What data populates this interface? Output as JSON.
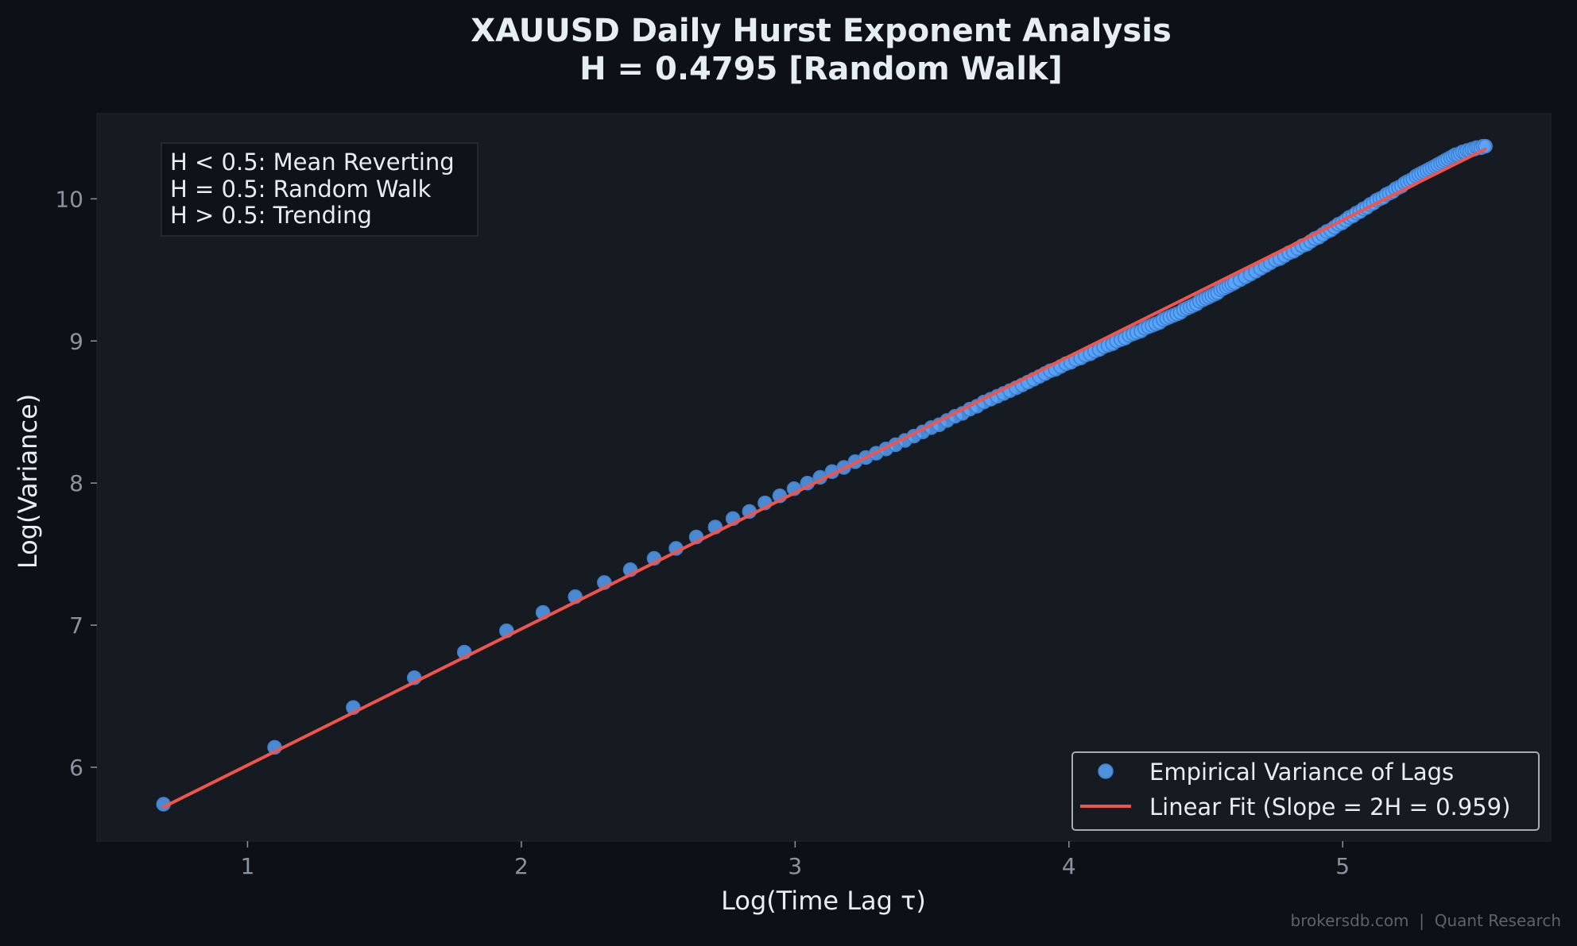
{
  "chart_data": {
    "type": "scatter",
    "title": "XAUUSD Daily Hurst Exponent Analysis",
    "subtitle": "H = 0.4795 [Random Walk]",
    "xlabel": "Log(Time Lag τ)",
    "ylabel": "Log(Variance)",
    "xlim": [
      0.45,
      5.76
    ],
    "ylim": [
      5.48,
      10.6
    ],
    "xticks": [
      1,
      2,
      3,
      4,
      5
    ],
    "yticks": [
      6,
      7,
      8,
      9,
      10
    ],
    "grid": false,
    "legend_position": "lower-right",
    "hurst": 0.4795,
    "series": [
      {
        "name": "Empirical Variance of Lags",
        "kind": "scatter",
        "color": "#58a6ff",
        "x": [
          0.693,
          1.099,
          1.386,
          1.609,
          1.792,
          1.946,
          2.079,
          2.197,
          2.303,
          2.398,
          2.485,
          2.565,
          2.639,
          2.708,
          2.773,
          2.833,
          2.89,
          2.944,
          2.996,
          3.045,
          3.091,
          3.135,
          3.178,
          3.219,
          3.258,
          3.296,
          3.332,
          3.367,
          3.401,
          3.434,
          3.466,
          3.497,
          3.526,
          3.555,
          3.584,
          3.611,
          3.638,
          3.664,
          3.689,
          3.714,
          3.738,
          3.761,
          3.784,
          3.807,
          3.829,
          3.85,
          3.871,
          3.892,
          3.912,
          3.932,
          3.951,
          3.97,
          3.989,
          4.007,
          4.025,
          4.043,
          4.06,
          4.078,
          4.094,
          4.111,
          4.127,
          4.143,
          4.159,
          4.174,
          4.19,
          4.205,
          4.22,
          4.234,
          4.248,
          4.263,
          4.277,
          4.29,
          4.304,
          4.317,
          4.331,
          4.344,
          4.357,
          4.369,
          4.382,
          4.394,
          4.407,
          4.419,
          4.431,
          4.443,
          4.454,
          4.466,
          4.477,
          4.489,
          4.5,
          4.511,
          4.522,
          4.533,
          4.543,
          4.554,
          4.564,
          4.575,
          4.585,
          4.595,
          4.605,
          4.625,
          4.644,
          4.663,
          4.682,
          4.7,
          4.718,
          4.736,
          4.754,
          4.771,
          4.787,
          4.804,
          4.82,
          4.836,
          4.852,
          4.868,
          4.883,
          4.898,
          4.913,
          4.927,
          4.942,
          4.956,
          4.97,
          4.984,
          4.997,
          5.011,
          5.024,
          5.037,
          5.05,
          5.063,
          5.075,
          5.088,
          5.1,
          5.112,
          5.124,
          5.136,
          5.147,
          5.159,
          5.17,
          5.182,
          5.193,
          5.204,
          5.215,
          5.226,
          5.236,
          5.247,
          5.257,
          5.268,
          5.278,
          5.288,
          5.298,
          5.308,
          5.318,
          5.328,
          5.338,
          5.347,
          5.357,
          5.366,
          5.375,
          5.384,
          5.394,
          5.403,
          5.412,
          5.421,
          5.429,
          5.438,
          5.447,
          5.455,
          5.464,
          5.472,
          5.481,
          5.489,
          5.497,
          5.505,
          5.513,
          5.521
        ],
        "y": [
          5.74,
          6.14,
          6.42,
          6.63,
          6.81,
          6.96,
          7.09,
          7.2,
          7.3,
          7.39,
          7.47,
          7.54,
          7.62,
          7.69,
          7.75,
          7.8,
          7.86,
          7.91,
          7.96,
          8.0,
          8.04,
          8.08,
          8.11,
          8.15,
          8.18,
          8.21,
          8.24,
          8.27,
          8.3,
          8.33,
          8.36,
          8.39,
          8.41,
          8.44,
          8.47,
          8.49,
          8.52,
          8.54,
          8.57,
          8.59,
          8.61,
          8.63,
          8.65,
          8.67,
          8.69,
          8.71,
          8.73,
          8.75,
          8.77,
          8.79,
          8.8,
          8.82,
          8.84,
          8.85,
          8.87,
          8.88,
          8.9,
          8.91,
          8.93,
          8.94,
          8.96,
          8.97,
          8.98,
          9.0,
          9.01,
          9.02,
          9.04,
          9.05,
          9.06,
          9.07,
          9.09,
          9.1,
          9.11,
          9.12,
          9.13,
          9.15,
          9.16,
          9.17,
          9.18,
          9.19,
          9.2,
          9.22,
          9.23,
          9.24,
          9.25,
          9.26,
          9.28,
          9.29,
          9.3,
          9.31,
          9.32,
          9.33,
          9.34,
          9.36,
          9.37,
          9.38,
          9.39,
          9.4,
          9.41,
          9.43,
          9.45,
          9.47,
          9.49,
          9.51,
          9.53,
          9.55,
          9.57,
          9.58,
          9.6,
          9.62,
          9.63,
          9.65,
          9.67,
          9.68,
          9.7,
          9.72,
          9.73,
          9.75,
          9.77,
          9.78,
          9.8,
          9.82,
          9.83,
          9.85,
          9.87,
          9.88,
          9.9,
          9.91,
          9.93,
          9.94,
          9.96,
          9.97,
          9.99,
          10.0,
          10.01,
          10.03,
          10.04,
          10.05,
          10.07,
          10.08,
          10.09,
          10.11,
          10.12,
          10.13,
          10.14,
          10.16,
          10.17,
          10.18,
          10.19,
          10.2,
          10.21,
          10.22,
          10.23,
          10.24,
          10.25,
          10.26,
          10.27,
          10.28,
          10.29,
          10.3,
          10.31,
          10.31,
          10.32,
          10.33,
          10.33,
          10.34,
          10.34,
          10.35,
          10.35,
          10.36,
          10.36,
          10.36,
          10.37,
          10.37
        ]
      },
      {
        "name": "Linear Fit (Slope = 2H = 0.959)",
        "kind": "line",
        "color": "#f0544c",
        "slope": 0.959,
        "x": [
          0.693,
          5.521
        ],
        "y": [
          5.72,
          10.35
        ]
      }
    ],
    "annotation": {
      "lines": [
        "H < 0.5: Mean Reverting",
        "H = 0.5: Random Walk",
        "H > 0.5: Trending"
      ]
    }
  },
  "watermark": "brokersdb.com  |  Quant Research",
  "colors": {
    "page_bg": "#0d1117",
    "plot_bg": "#161b22",
    "scatter": "#58a6ff",
    "fit_line": "#f0544c",
    "text": "#e6edf3",
    "tick": "#8b949e"
  }
}
